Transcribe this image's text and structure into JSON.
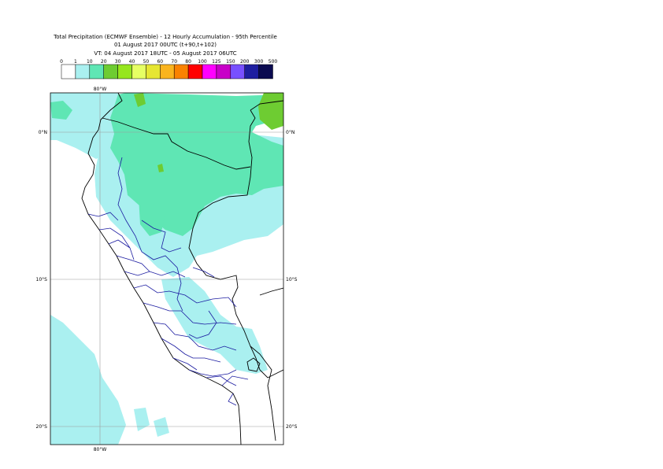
{
  "title": {
    "line1": "Total Precipitation (ECMWF Ensemble) - 12 Hourly Accumulation - 95th Percentile",
    "line2": "01 August 2017 00UTC (t+90,t+102)",
    "line3": "VT: 04 August 2017 18UTC - 05 August 2017 06UTC"
  },
  "legend": {
    "thresholds": [
      "0",
      "1",
      "10",
      "20",
      "30",
      "40",
      "50",
      "60",
      "70",
      "80",
      "100",
      "125",
      "150",
      "200",
      "300",
      "500"
    ],
    "colors": [
      "#ffffff",
      "#aaf0f0",
      "#5fe6b4",
      "#6ecc32",
      "#96e61e",
      "#e6ff64",
      "#e6e632",
      "#fab41e",
      "#fa8200",
      "#ff0000",
      "#ff00ff",
      "#c800c8",
      "#7850ff",
      "#1e1ea0",
      "#0a0a50"
    ]
  },
  "axes": {
    "lon_top": "80°W",
    "lon_bottom": "80°W",
    "lat_left": [
      "0°N",
      "10°S",
      "20°S"
    ],
    "lat_right": [
      "0°N",
      "10°S",
      "20°S"
    ]
  }
}
